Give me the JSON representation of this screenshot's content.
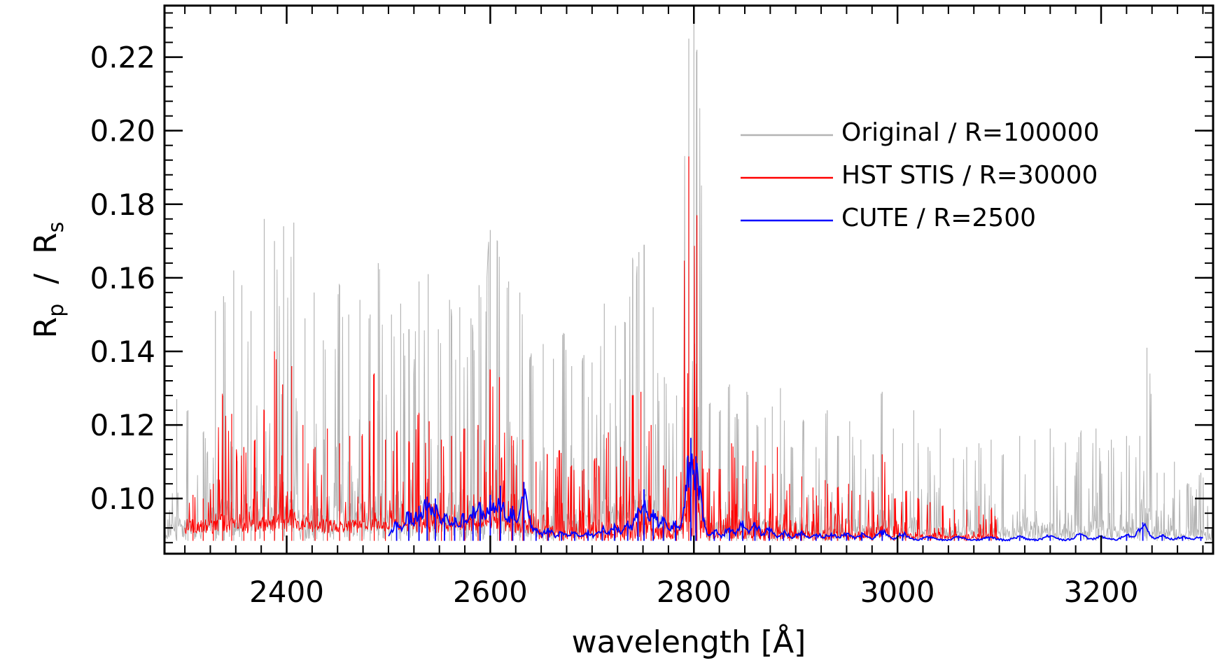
{
  "chart_data": {
    "type": "line",
    "title": "",
    "xlabel": "wavelength [Å]",
    "ylabel": "R",
    "ylabel_sub_p": "p",
    "ylabel_slash": "/",
    "ylabel_R": "R",
    "ylabel_sub_s": "s",
    "xlim": [
      2280,
      3310
    ],
    "ylim": [
      0.085,
      0.234
    ],
    "xticks": [
      2400,
      2600,
      2800,
      3000,
      3200
    ],
    "xtick_labels": [
      "2400",
      "2600",
      "2800",
      "3000",
      "3200"
    ],
    "yticks": [
      0.1,
      0.12,
      0.14,
      0.16,
      0.18,
      0.2,
      0.22
    ],
    "ytick_labels": [
      "0.10",
      "0.12",
      "0.14",
      "0.16",
      "0.18",
      "0.20",
      "0.22"
    ],
    "x_minor_step": 25,
    "y_minor_step": 0.004,
    "legend_position": "top-right",
    "series": [
      {
        "name": "Original / R=100000",
        "color": "#b4b4b4",
        "x_range": [
          2280,
          3310
        ],
        "baseline": 0.0885,
        "peaks": [
          [
            2292,
            0.127
          ],
          [
            2303,
            0.124
          ],
          [
            2318,
            0.118
          ],
          [
            2330,
            0.151
          ],
          [
            2338,
            0.155
          ],
          [
            2348,
            0.162
          ],
          [
            2356,
            0.158
          ],
          [
            2365,
            0.151
          ],
          [
            2378,
            0.176
          ],
          [
            2388,
            0.17
          ],
          [
            2397,
            0.174
          ],
          [
            2407,
            0.175
          ],
          [
            2418,
            0.149
          ],
          [
            2427,
            0.156
          ],
          [
            2436,
            0.143
          ],
          [
            2452,
            0.158
          ],
          [
            2461,
            0.15
          ],
          [
            2472,
            0.154
          ],
          [
            2482,
            0.15
          ],
          [
            2490,
            0.164
          ],
          [
            2503,
            0.15
          ],
          [
            2512,
            0.153
          ],
          [
            2520,
            0.146
          ],
          [
            2530,
            0.159
          ],
          [
            2539,
            0.161
          ],
          [
            2549,
            0.146
          ],
          [
            2560,
            0.154
          ],
          [
            2570,
            0.152
          ],
          [
            2581,
            0.149
          ],
          [
            2589,
            0.158
          ],
          [
            2600,
            0.173
          ],
          [
            2607,
            0.17
          ],
          [
            2618,
            0.159
          ],
          [
            2629,
            0.156
          ],
          [
            2640,
            0.139
          ],
          [
            2652,
            0.142
          ],
          [
            2662,
            0.138
          ],
          [
            2672,
            0.145
          ],
          [
            2680,
            0.136
          ],
          [
            2692,
            0.139
          ],
          [
            2700,
            0.137
          ],
          [
            2712,
            0.153
          ],
          [
            2723,
            0.147
          ],
          [
            2732,
            0.148
          ],
          [
            2740,
            0.165
          ],
          [
            2746,
            0.167
          ],
          [
            2751,
            0.169
          ],
          [
            2760,
            0.152
          ],
          [
            2771,
            0.133
          ],
          [
            2783,
            0.128
          ],
          [
            2795,
            0.225
          ],
          [
            2800,
            0.232
          ],
          [
            2803,
            0.222
          ],
          [
            2816,
            0.126
          ],
          [
            2826,
            0.124
          ],
          [
            2835,
            0.131
          ],
          [
            2842,
            0.123
          ],
          [
            2852,
            0.129
          ],
          [
            2862,
            0.12
          ],
          [
            2870,
            0.122
          ],
          [
            2877,
            0.125
          ],
          [
            2885,
            0.13
          ],
          [
            2896,
            0.114
          ],
          [
            2908,
            0.121
          ],
          [
            2920,
            0.114
          ],
          [
            2931,
            0.124
          ],
          [
            2942,
            0.117
          ],
          [
            2953,
            0.121
          ],
          [
            2964,
            0.116
          ],
          [
            2976,
            0.112
          ],
          [
            2985,
            0.129
          ],
          [
            2996,
            0.119
          ],
          [
            3005,
            0.115
          ],
          [
            3016,
            0.124
          ],
          [
            3030,
            0.114
          ],
          [
            3042,
            0.119
          ],
          [
            3055,
            0.111
          ],
          [
            3068,
            0.114
          ],
          [
            3080,
            0.115
          ],
          [
            3092,
            0.116
          ],
          [
            3104,
            0.112
          ],
          [
            3120,
            0.117
          ],
          [
            3135,
            0.116
          ],
          [
            3150,
            0.119
          ],
          [
            3165,
            0.115
          ],
          [
            3180,
            0.118
          ],
          [
            3195,
            0.119
          ],
          [
            3210,
            0.116
          ],
          [
            3225,
            0.117
          ],
          [
            3238,
            0.117
          ],
          [
            3245,
            0.141
          ],
          [
            3255,
            0.107
          ],
          [
            3262,
            0.107
          ],
          [
            3272,
            0.11
          ],
          [
            3286,
            0.104
          ],
          [
            3298,
            0.107
          ]
        ]
      },
      {
        "name": "HST STIS / R=30000",
        "color": "#ff0000",
        "x_range": [
          2300,
          3100
        ],
        "baseline": 0.0885,
        "peaks": [
          [
            2308,
            0.101
          ],
          [
            2318,
            0.1
          ],
          [
            2328,
            0.104
          ],
          [
            2337,
            0.128
          ],
          [
            2346,
            0.123
          ],
          [
            2358,
            0.114
          ],
          [
            2369,
            0.116
          ],
          [
            2378,
            0.124
          ],
          [
            2388,
            0.14
          ],
          [
            2396,
            0.131
          ],
          [
            2405,
            0.136
          ],
          [
            2416,
            0.12
          ],
          [
            2428,
            0.114
          ],
          [
            2440,
            0.119
          ],
          [
            2452,
            0.115
          ],
          [
            2462,
            0.117
          ],
          [
            2474,
            0.117
          ],
          [
            2486,
            0.134
          ],
          [
            2497,
            0.116
          ],
          [
            2508,
            0.118
          ],
          [
            2520,
            0.115
          ],
          [
            2530,
            0.123
          ],
          [
            2540,
            0.121
          ],
          [
            2552,
            0.116
          ],
          [
            2562,
            0.117
          ],
          [
            2575,
            0.119
          ],
          [
            2588,
            0.12
          ],
          [
            2600,
            0.135
          ],
          [
            2609,
            0.133
          ],
          [
            2621,
            0.117
          ],
          [
            2632,
            0.116
          ],
          [
            2645,
            0.11
          ],
          [
            2656,
            0.112
          ],
          [
            2668,
            0.113
          ],
          [
            2680,
            0.109
          ],
          [
            2692,
            0.108
          ],
          [
            2704,
            0.111
          ],
          [
            2716,
            0.118
          ],
          [
            2728,
            0.114
          ],
          [
            2740,
            0.128
          ],
          [
            2748,
            0.129
          ],
          [
            2758,
            0.12
          ],
          [
            2770,
            0.109
          ],
          [
            2783,
            0.106
          ],
          [
            2795,
            0.193
          ],
          [
            2803,
            0.177
          ],
          [
            2815,
            0.108
          ],
          [
            2826,
            0.108
          ],
          [
            2837,
            0.115
          ],
          [
            2848,
            0.109
          ],
          [
            2858,
            0.113
          ],
          [
            2870,
            0.109
          ],
          [
            2882,
            0.114
          ],
          [
            2894,
            0.104
          ],
          [
            2906,
            0.106
          ],
          [
            2917,
            0.103
          ],
          [
            2929,
            0.105
          ],
          [
            2941,
            0.103
          ],
          [
            2952,
            0.104
          ],
          [
            2963,
            0.101
          ],
          [
            2975,
            0.102
          ],
          [
            2985,
            0.112
          ],
          [
            2997,
            0.1
          ],
          [
            3008,
            0.102
          ],
          [
            3020,
            0.1
          ],
          [
            3032,
            0.099
          ],
          [
            3044,
            0.098
          ],
          [
            3056,
            0.097
          ],
          [
            3068,
            0.097
          ],
          [
            3080,
            0.098
          ],
          [
            3092,
            0.097
          ]
        ]
      },
      {
        "name": "CUTE / R=2500",
        "color": "#0000ff",
        "x_range": [
          2500,
          3300
        ],
        "baseline": 0.0885,
        "peaks": [
          [
            2508,
            0.0935
          ],
          [
            2520,
            0.0965
          ],
          [
            2530,
            0.098
          ],
          [
            2538,
            0.1005
          ],
          [
            2546,
            0.1
          ],
          [
            2555,
            0.096
          ],
          [
            2565,
            0.095
          ],
          [
            2574,
            0.096
          ],
          [
            2583,
            0.098
          ],
          [
            2590,
            0.099
          ],
          [
            2600,
            0.101
          ],
          [
            2610,
            0.1035
          ],
          [
            2622,
            0.098
          ],
          [
            2633,
            0.1045
          ],
          [
            2645,
            0.092
          ],
          [
            2657,
            0.092
          ],
          [
            2670,
            0.091
          ],
          [
            2683,
            0.091
          ],
          [
            2696,
            0.091
          ],
          [
            2710,
            0.092
          ],
          [
            2722,
            0.093
          ],
          [
            2735,
            0.094
          ],
          [
            2745,
            0.097
          ],
          [
            2751,
            0.1025
          ],
          [
            2760,
            0.097
          ],
          [
            2770,
            0.095
          ],
          [
            2782,
            0.094
          ],
          [
            2797,
            0.1165
          ],
          [
            2802,
            0.1115
          ],
          [
            2820,
            0.0915
          ],
          [
            2835,
            0.092
          ],
          [
            2848,
            0.094
          ],
          [
            2860,
            0.0935
          ],
          [
            2874,
            0.092
          ],
          [
            2888,
            0.091
          ],
          [
            2905,
            0.091
          ],
          [
            2920,
            0.0905
          ],
          [
            2935,
            0.0905
          ],
          [
            2950,
            0.0905
          ],
          [
            2965,
            0.0905
          ],
          [
            2985,
            0.0915
          ],
          [
            3005,
            0.0905
          ],
          [
            3030,
            0.0895
          ],
          [
            3060,
            0.0895
          ],
          [
            3090,
            0.0895
          ],
          [
            3120,
            0.0895
          ],
          [
            3150,
            0.09
          ],
          [
            3180,
            0.0905
          ],
          [
            3200,
            0.0895
          ],
          [
            3225,
            0.09
          ],
          [
            3241,
            0.0935
          ],
          [
            3260,
            0.09
          ],
          [
            3280,
            0.0895
          ],
          [
            3298,
            0.0895
          ]
        ]
      }
    ]
  }
}
